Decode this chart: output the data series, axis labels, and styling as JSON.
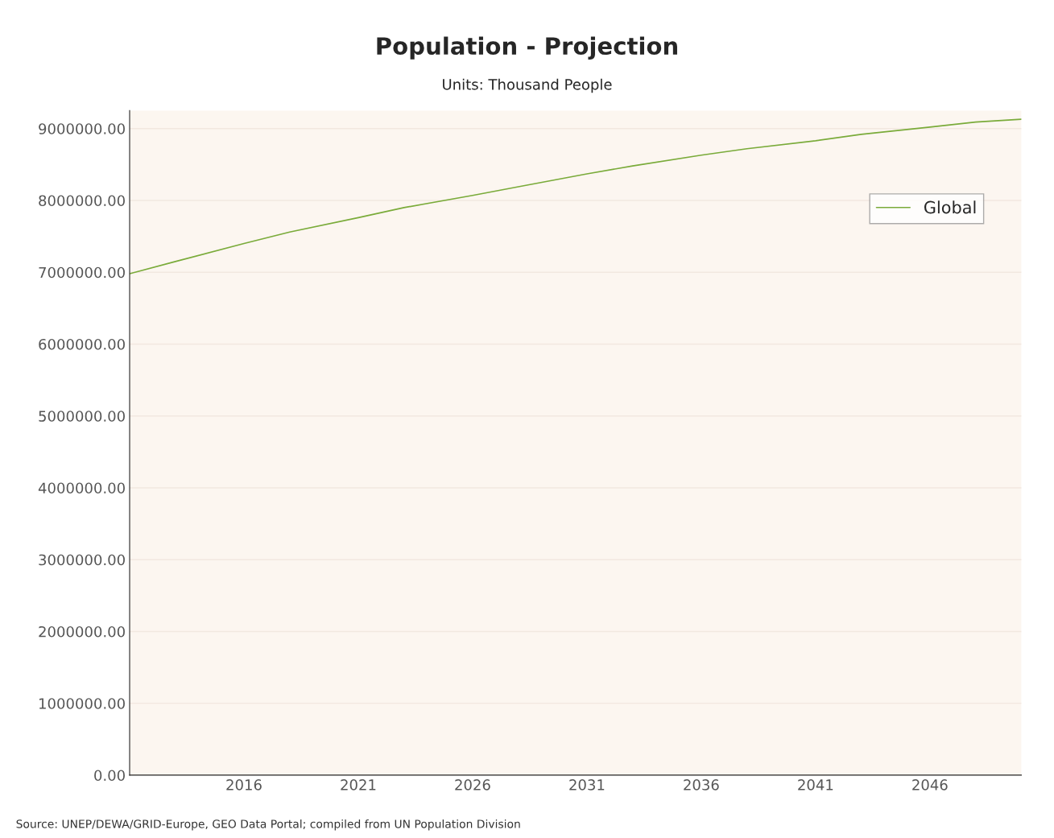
{
  "chart_data": {
    "type": "line",
    "title": "Population - Projection",
    "subtitle": "Units: Thousand People",
    "x": [
      2011,
      2013,
      2016,
      2018,
      2021,
      2023,
      2026,
      2028,
      2031,
      2033,
      2036,
      2038,
      2041,
      2043,
      2046,
      2048,
      2050
    ],
    "series": [
      {
        "name": "Global",
        "color": "#7aab3a",
        "values": [
          6980000,
          7150000,
          7400000,
          7560000,
          7760000,
          7900000,
          8070000,
          8190000,
          8370000,
          8480000,
          8630000,
          8720000,
          8830000,
          8920000,
          9020000,
          9090000,
          9130000
        ]
      }
    ],
    "xlim": [
      2011,
      2050
    ],
    "xticks": [
      2016,
      2021,
      2026,
      2031,
      2036,
      2041,
      2046
    ],
    "ylim": [
      0,
      9250000
    ],
    "yticks": [
      {
        "value": 0,
        "label": "0.00"
      },
      {
        "value": 1000000,
        "label": "1000000.00"
      },
      {
        "value": 2000000,
        "label": "2000000.00"
      },
      {
        "value": 3000000,
        "label": "3000000.00"
      },
      {
        "value": 4000000,
        "label": "4000000.00"
      },
      {
        "value": 5000000,
        "label": "5000000.00"
      },
      {
        "value": 6000000,
        "label": "6000000.00"
      },
      {
        "value": 7000000,
        "label": "7000000.00"
      },
      {
        "value": 8000000,
        "label": "8000000.00"
      },
      {
        "value": 9000000,
        "label": "9000000.00"
      }
    ],
    "grid": "y",
    "legend": "top right",
    "marker": "none",
    "line_style": "solid",
    "annotations": [
      "Source: UNEP/DEWA/GRID-Europe, GEO Data Portal; compiled from UN Population Division"
    ]
  }
}
